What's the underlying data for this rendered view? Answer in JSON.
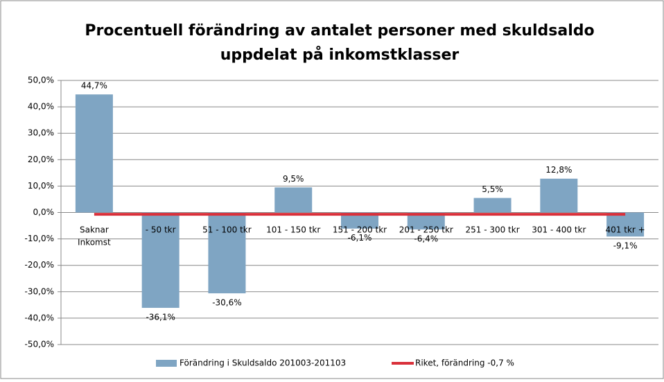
{
  "chart_data": {
    "type": "bar",
    "title": [
      "Procentuell förändring av antalet personer med skuldsaldo",
      "uppdelat på inkomstklasser"
    ],
    "categories": [
      "Saknar\nInkomst",
      "- 50 tkr",
      "51 - 100 tkr",
      "101 - 150 tkr",
      "151 - 200 tkr",
      "201 - 250 tkr",
      "251 - 300 tkr",
      "301 - 400 tkr",
      "401 tkr +"
    ],
    "series": [
      {
        "name": "Förändring i Skuldsaldo 201003-201103",
        "type": "bar",
        "color": "#7fa5c3",
        "values": [
          44.7,
          -36.1,
          -30.6,
          9.5,
          -6.1,
          -6.4,
          5.5,
          12.8,
          -9.1
        ],
        "value_labels": [
          "44,7%",
          "-36,1%",
          "-30,6%",
          "9,5%",
          "-6,1%",
          "-6,4%",
          "5,5%",
          "12,8%",
          "-9,1%"
        ]
      },
      {
        "name": "Riket, förändring -0,7 %",
        "type": "line",
        "color": "#d9303a",
        "values": [
          -0.7,
          -0.7,
          -0.7,
          -0.7,
          -0.7,
          -0.7,
          -0.7,
          -0.7,
          -0.7
        ]
      }
    ],
    "ylim": [
      -50,
      50
    ],
    "yticks": [
      {
        "value": -50,
        "label": "-50,0%"
      },
      {
        "value": -40,
        "label": "-40,0%"
      },
      {
        "value": -30,
        "label": "-30,0%"
      },
      {
        "value": -20,
        "label": "-20,0%"
      },
      {
        "value": -10,
        "label": "-10,0%"
      },
      {
        "value": 0,
        "label": "0,0%"
      },
      {
        "value": 10,
        "label": "10,0%"
      },
      {
        "value": 20,
        "label": "20,0%"
      },
      {
        "value": 30,
        "label": "30,0%"
      },
      {
        "value": 40,
        "label": "40,0%"
      },
      {
        "value": 50,
        "label": "50,0%"
      }
    ],
    "grid": true,
    "legend": "bottom"
  }
}
